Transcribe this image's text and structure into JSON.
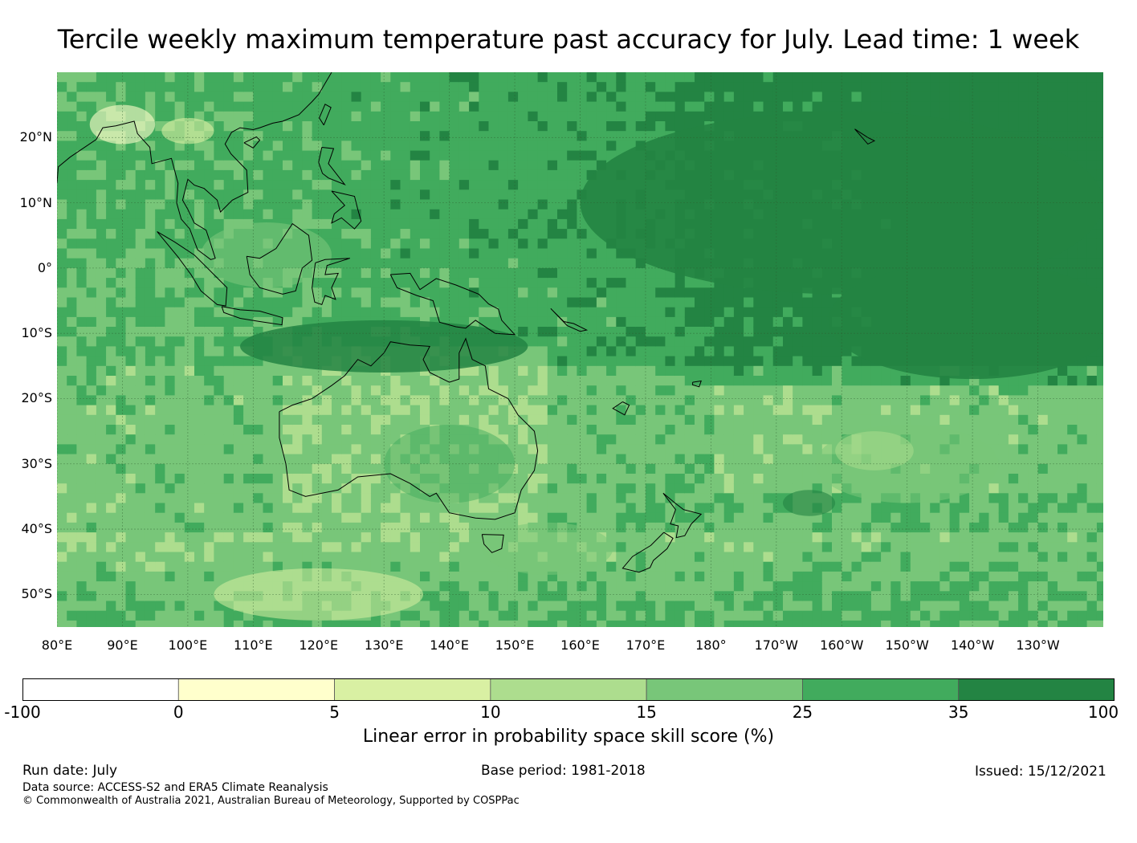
{
  "title": "Tercile weekly maximum temperature past accuracy for July. Lead time: 1 week",
  "map": {
    "lon_range": [
      80,
      240
    ],
    "lat_range": [
      -55,
      30
    ],
    "lat_ticks": [
      {
        "value": 20,
        "label": "20°N"
      },
      {
        "value": 10,
        "label": "10°N"
      },
      {
        "value": 0,
        "label": "0°"
      },
      {
        "value": -10,
        "label": "10°S"
      },
      {
        "value": -20,
        "label": "20°S"
      },
      {
        "value": -30,
        "label": "30°S"
      },
      {
        "value": -40,
        "label": "40°S"
      },
      {
        "value": -50,
        "label": "50°S"
      }
    ],
    "lon_ticks": [
      {
        "value": 80,
        "label": "80°E"
      },
      {
        "value": 90,
        "label": "90°E"
      },
      {
        "value": 100,
        "label": "100°E"
      },
      {
        "value": 110,
        "label": "110°E"
      },
      {
        "value": 120,
        "label": "120°E"
      },
      {
        "value": 130,
        "label": "130°E"
      },
      {
        "value": 140,
        "label": "140°E"
      },
      {
        "value": 150,
        "label": "150°E"
      },
      {
        "value": 160,
        "label": "160°E"
      },
      {
        "value": 170,
        "label": "170°E"
      },
      {
        "value": 180,
        "label": "180°"
      },
      {
        "value": 190,
        "label": "170°W"
      },
      {
        "value": 200,
        "label": "160°W"
      },
      {
        "value": 210,
        "label": "150°W"
      },
      {
        "value": 220,
        "label": "140°W"
      },
      {
        "value": 230,
        "label": "130°W"
      }
    ],
    "grid": true
  },
  "colorbar": {
    "ticks": [
      "-100",
      "0",
      "5",
      "10",
      "15",
      "25",
      "35",
      "100"
    ],
    "colors": [
      "#ffffff",
      "#ffffcc",
      "#d9f0a3",
      "#addd8e",
      "#78c679",
      "#41ab5d",
      "#238443"
    ],
    "label": "Linear error in probability space skill score (%)"
  },
  "footer": {
    "run_date": "Run date: July",
    "base_period": "Base period: 1981-2018",
    "issued": "Issued: 15/12/2021",
    "data_source": "Data source: ACCESS-S2 and ERA5 Climate Reanalysis",
    "copyright": "© Commonwealth of Australia 2021, Australian Bureau of Meteorology, Supported by COSPPac"
  }
}
